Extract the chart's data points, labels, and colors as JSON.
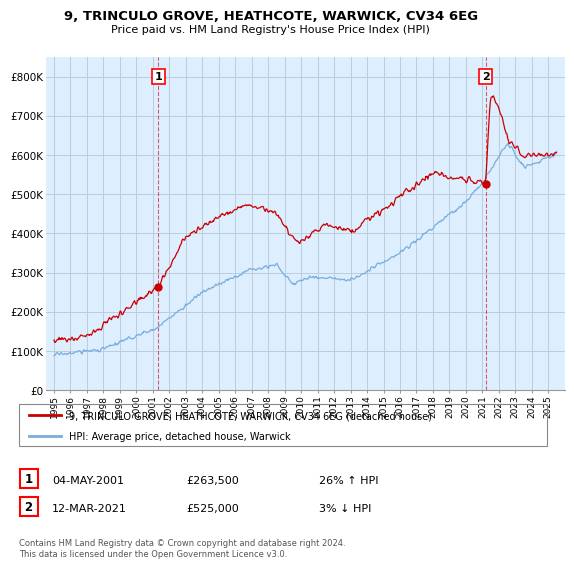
{
  "title": "9, TRINCULO GROVE, HEATHCOTE, WARWICK, CV34 6EG",
  "subtitle": "Price paid vs. HM Land Registry's House Price Index (HPI)",
  "ylim": [
    0,
    850000
  ],
  "yticks": [
    0,
    100000,
    200000,
    300000,
    400000,
    500000,
    600000,
    700000,
    800000
  ],
  "ytick_labels": [
    "£0",
    "£100K",
    "£200K",
    "£300K",
    "£400K",
    "£500K",
    "£600K",
    "£700K",
    "£800K"
  ],
  "sale1_date": 2001.34,
  "sale1_price": 263500,
  "sale2_date": 2021.19,
  "sale2_price": 525000,
  "red_line_color": "#cc0000",
  "blue_line_color": "#7aaddb",
  "plot_bg_color": "#ddeeff",
  "legend_label_red": "9, TRINCULO GROVE, HEATHCOTE, WARWICK, CV34 6EG (detached house)",
  "legend_label_blue": "HPI: Average price, detached house, Warwick",
  "table_row1": [
    "1",
    "04-MAY-2001",
    "£263,500",
    "26% ↑ HPI"
  ],
  "table_row2": [
    "2",
    "12-MAR-2021",
    "£525,000",
    "3% ↓ HPI"
  ],
  "footnote": "Contains HM Land Registry data © Crown copyright and database right 2024.\nThis data is licensed under the Open Government Licence v3.0.",
  "background_color": "#ffffff",
  "grid_color": "#bbccdd"
}
